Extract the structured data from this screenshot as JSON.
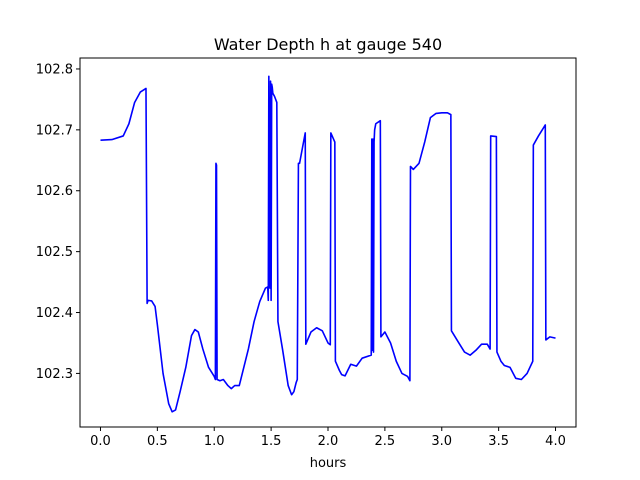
{
  "chart_data": {
    "type": "line",
    "title": "Water Depth h at gauge 540",
    "xlabel": "hours",
    "ylabel": "",
    "xlim": [
      -0.18,
      4.18
    ],
    "ylim": [
      102.212,
      102.818
    ],
    "xticks": [
      0.0,
      0.5,
      1.0,
      1.5,
      2.0,
      2.5,
      3.0,
      3.5,
      4.0
    ],
    "xtick_labels": [
      "0.0",
      "0.5",
      "1.0",
      "1.5",
      "2.0",
      "2.5",
      "3.0",
      "3.5",
      "4.0"
    ],
    "yticks": [
      102.3,
      102.4,
      102.5,
      102.6,
      102.7,
      102.8
    ],
    "ytick_labels": [
      "102.3",
      "102.4",
      "102.5",
      "102.6",
      "102.7",
      "102.8"
    ],
    "grid": false,
    "legend": "none",
    "series": [
      {
        "color": "#0000ff",
        "x": [
          0.0,
          0.1,
          0.2,
          0.25,
          0.3,
          0.35,
          0.4,
          0.41,
          0.415,
          0.42,
          0.45,
          0.48,
          0.5,
          0.55,
          0.6,
          0.63,
          0.66,
          0.7,
          0.75,
          0.8,
          0.83,
          0.86,
          0.9,
          0.95,
          1.0,
          1.01,
          1.015,
          1.02,
          1.025,
          1.05,
          1.08,
          1.12,
          1.15,
          1.18,
          1.22,
          1.3,
          1.35,
          1.4,
          1.45,
          1.47,
          1.475,
          1.48,
          1.485,
          1.49,
          1.495,
          1.5,
          1.505,
          1.51,
          1.515,
          1.53,
          1.55,
          1.56,
          1.6,
          1.65,
          1.68,
          1.7,
          1.72,
          1.73,
          1.74,
          1.75,
          1.8,
          1.805,
          1.85,
          1.9,
          1.95,
          2.0,
          2.02,
          2.025,
          2.06,
          2.065,
          2.1,
          2.12,
          2.15,
          2.2,
          2.25,
          2.3,
          2.38,
          2.385,
          2.39,
          2.395,
          2.4,
          2.405,
          2.41,
          2.42,
          2.46,
          2.465,
          2.5,
          2.55,
          2.6,
          2.65,
          2.7,
          2.72,
          2.725,
          2.75,
          2.8,
          2.85,
          2.9,
          2.95,
          3.0,
          3.05,
          3.08,
          3.085,
          3.15,
          3.2,
          3.25,
          3.3,
          3.35,
          3.4,
          3.425,
          3.43,
          3.48,
          3.485,
          3.52,
          3.55,
          3.6,
          3.65,
          3.7,
          3.75,
          3.8,
          3.805,
          3.85,
          3.9,
          3.91,
          3.915,
          3.95,
          4.0
        ],
        "values": [
          102.683,
          102.684,
          102.69,
          102.71,
          102.745,
          102.762,
          102.768,
          102.415,
          102.418,
          102.42,
          102.419,
          102.41,
          102.38,
          102.3,
          102.25,
          102.237,
          102.24,
          102.27,
          102.31,
          102.362,
          102.372,
          102.368,
          102.34,
          102.31,
          102.295,
          102.29,
          102.645,
          102.642,
          102.29,
          102.288,
          102.29,
          102.28,
          102.275,
          102.28,
          102.28,
          102.34,
          102.385,
          102.418,
          102.44,
          102.442,
          102.42,
          102.788,
          102.45,
          102.44,
          102.78,
          102.42,
          102.775,
          102.77,
          102.76,
          102.755,
          102.745,
          102.385,
          102.34,
          102.28,
          102.265,
          102.27,
          102.285,
          102.29,
          102.645,
          102.645,
          102.695,
          102.348,
          102.368,
          102.375,
          102.37,
          102.35,
          102.347,
          102.695,
          102.68,
          102.32,
          102.305,
          102.298,
          102.296,
          102.315,
          102.312,
          102.325,
          102.33,
          102.685,
          102.338,
          102.685,
          102.335,
          102.68,
          102.7,
          102.71,
          102.715,
          102.36,
          102.368,
          102.35,
          102.32,
          102.3,
          102.295,
          102.288,
          102.64,
          102.635,
          102.645,
          102.68,
          102.72,
          102.727,
          102.728,
          102.728,
          102.725,
          102.37,
          102.35,
          102.335,
          102.33,
          102.338,
          102.348,
          102.348,
          102.34,
          102.69,
          102.689,
          102.335,
          102.32,
          102.313,
          102.31,
          102.292,
          102.29,
          102.3,
          102.32,
          102.675,
          102.69,
          102.705,
          102.708,
          102.355,
          102.36,
          102.358
        ]
      }
    ]
  }
}
